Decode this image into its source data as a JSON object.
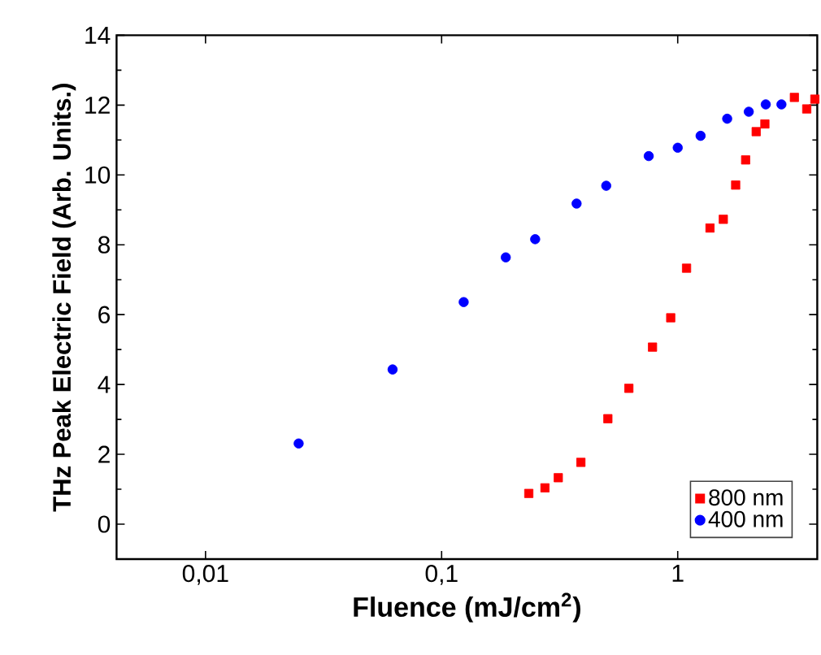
{
  "chart_data": {
    "type": "scatter",
    "xlabel": "Fluence (mJ/cm$^{2}$)",
    "ylabel": "THz Peak Electric Field (Arb. Units.)",
    "log": "x",
    "xlim": [
      0.0042,
      3.9
    ],
    "ylim": [
      -1,
      14
    ],
    "xticks": [
      {
        "value": 0.01,
        "label": "0,01"
      },
      {
        "value": 0.1,
        "label": "0,1"
      },
      1
    ],
    "yticks": [
      0,
      2,
      4,
      6,
      8,
      10,
      12,
      14
    ],
    "legend": "bottom right",
    "series": [
      {
        "name": "800 nm",
        "color": "#ff0000",
        "marker": "square",
        "x": [
          0.234,
          0.274,
          0.312,
          0.389,
          0.506,
          0.621,
          0.782,
          0.934,
          1.09,
          1.37,
          1.56,
          1.76,
          1.94,
          2.15,
          2.34,
          3.12,
          3.52,
          3.81
        ],
        "values": [
          0.88,
          1.04,
          1.33,
          1.77,
          3.02,
          3.89,
          5.07,
          5.91,
          7.33,
          8.48,
          8.73,
          9.71,
          10.43,
          11.24,
          11.46,
          12.22,
          11.89,
          12.17
        ]
      },
      {
        "name": "400 nm",
        "color": "#0000ff",
        "marker": "circle",
        "x": [
          0.0248,
          0.062,
          0.124,
          0.187,
          0.249,
          0.373,
          0.498,
          0.754,
          1.0,
          1.25,
          1.62,
          2.0,
          2.36,
          2.75
        ],
        "values": [
          2.31,
          4.43,
          6.36,
          7.64,
          8.16,
          9.18,
          9.69,
          10.54,
          10.78,
          11.12,
          11.61,
          11.81,
          12.02,
          12.02
        ]
      }
    ]
  }
}
